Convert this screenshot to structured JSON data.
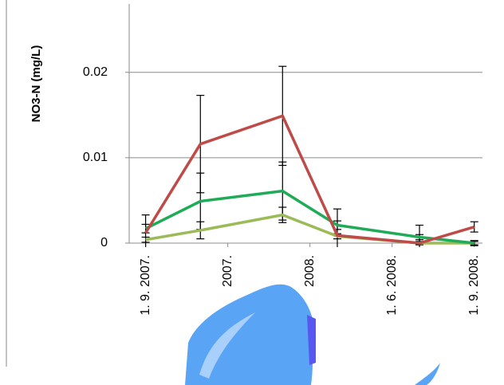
{
  "chart_data": {
    "type": "line",
    "y_label": "NO3-N (mg/L)",
    "x": [
      0,
      2,
      5,
      7,
      10,
      12
    ],
    "xlim": [
      -0.6,
      12.3
    ],
    "xticks": [
      {
        "value": 0,
        "label": "1. 9. 2007."
      },
      {
        "value": 3,
        "label": "2007."
      },
      {
        "value": 6,
        "label": "2008."
      },
      {
        "value": 9,
        "label": "1. 6. 2008."
      },
      {
        "value": 12,
        "label": "1. 9. 2008."
      }
    ],
    "ylim": [
      0,
      0.028
    ],
    "yticks": [
      0,
      0.01,
      0.02
    ],
    "grid": true,
    "series": [
      {
        "color": "#be4b48",
        "values": [
          0.0012,
          0.0116,
          0.0149,
          0.0009,
          0.0,
          0.0019
        ],
        "errors": [
          0.0021,
          0.0057,
          0.0058,
          0.0031,
          0.0021,
          0.0006
        ]
      },
      {
        "color": "#1fab57",
        "values": [
          0.0017,
          0.0049,
          0.0061,
          0.0021,
          0.0007,
          0.0
        ],
        "errors": [
          0.0005,
          0.0033,
          0.0034,
          0.0005,
          0.0003,
          0.0003
        ]
      },
      {
        "color": "#9bbb59",
        "values": [
          0.0004,
          0.0015,
          0.0033,
          0.0008,
          0.0,
          0.0
        ],
        "errors": [
          0.0003,
          0.001,
          0.0009,
          0.0003,
          0.0002,
          0.0002
        ]
      }
    ]
  }
}
